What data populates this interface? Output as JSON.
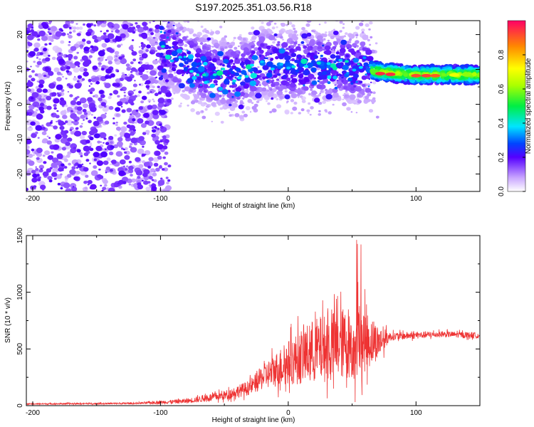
{
  "title": "S197.2025.351.03.56.R18",
  "chart_data": [
    {
      "type": "heatmap",
      "xlabel": "Height of straight line (km)",
      "ylabel": "Frequency (Hz)",
      "xlim": [
        -205,
        150
      ],
      "ylim": [
        -25,
        24
      ],
      "xticks": [
        -200,
        -100,
        0,
        100
      ],
      "yticks": [
        -20,
        -10,
        0,
        10,
        20
      ],
      "colorbar": {
        "label": "Normalized spectral amplitude",
        "range": [
          0,
          1
        ],
        "ticks": [
          "0.0",
          "0.2",
          "0.4",
          "0.6",
          "0.8"
        ]
      },
      "ridge": [
        {
          "x": -100,
          "f": 16
        },
        {
          "x": -80,
          "f": 12
        },
        {
          "x": -60,
          "f": 9
        },
        {
          "x": -40,
          "f": 8
        },
        {
          "x": -20,
          "f": 12
        },
        {
          "x": 0,
          "f": 11
        },
        {
          "x": 20,
          "f": 11
        },
        {
          "x": 40,
          "f": 11
        },
        {
          "x": 60,
          "f": 10
        },
        {
          "x": 80,
          "f": 9
        },
        {
          "x": 100,
          "f": 8.5
        },
        {
          "x": 150,
          "f": 8.5
        }
      ]
    },
    {
      "type": "line",
      "xlabel": "Height of straight line (km)",
      "ylabel": "SNR (10 * v/v)",
      "xlim": [
        -205,
        150
      ],
      "ylim": [
        0,
        1500
      ],
      "xticks": [
        -200,
        -100,
        0,
        100
      ],
      "yticks": [
        0,
        500,
        1000,
        1500
      ],
      "series": [
        {
          "name": "SNR",
          "color": "#ee3333",
          "envelope": [
            {
              "x": -205,
              "mean": 15,
              "amp": 10
            },
            {
              "x": -120,
              "mean": 20,
              "amp": 12
            },
            {
              "x": -80,
              "mean": 40,
              "amp": 35
            },
            {
              "x": -50,
              "mean": 90,
              "amp": 70
            },
            {
              "x": -30,
              "mean": 160,
              "amp": 110
            },
            {
              "x": -20,
              "mean": 250,
              "amp": 180
            },
            {
              "x": 0,
              "mean": 380,
              "amp": 330
            },
            {
              "x": 20,
              "mean": 480,
              "amp": 480
            },
            {
              "x": 40,
              "mean": 540,
              "amp": 520
            },
            {
              "x": 55,
              "mean": 580,
              "amp": 560
            },
            {
              "x": 70,
              "mean": 560,
              "amp": 260
            },
            {
              "x": 80,
              "mean": 610,
              "amp": 60
            },
            {
              "x": 120,
              "mean": 630,
              "amp": 45
            },
            {
              "x": 150,
              "mean": 620,
              "amp": 45
            }
          ]
        }
      ]
    }
  ]
}
